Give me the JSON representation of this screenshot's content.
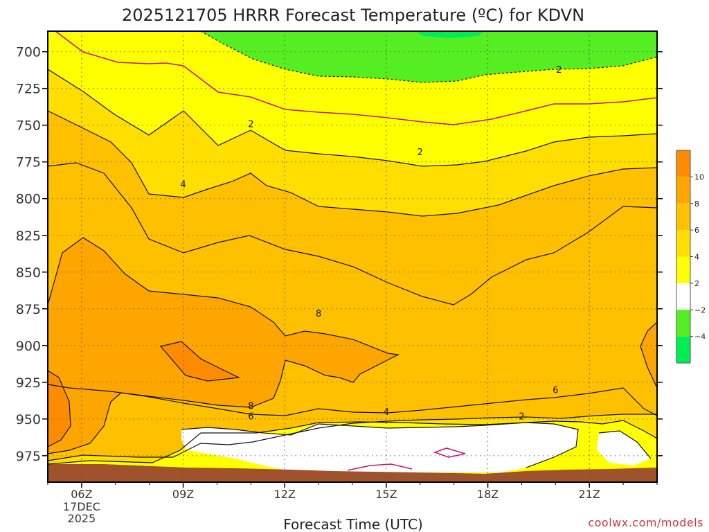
{
  "chart_data": {
    "type": "heatmap",
    "title": "2025121705 HRRR Forecast Temperature (ºC) for KDVN",
    "xlabel": "Forecast Time (UTC)",
    "credit": "coolwx.com/models",
    "y_ticks": [
      "700",
      "725",
      "750",
      "775",
      "800",
      "825",
      "850",
      "875",
      "900",
      "925",
      "950",
      "975"
    ],
    "y_values": [
      700,
      725,
      750,
      775,
      800,
      825,
      850,
      875,
      900,
      925,
      950,
      975
    ],
    "x_ticks": [
      {
        "hour": 6,
        "label": "06Z",
        "sub": [
          "17DEC",
          "2025"
        ]
      },
      {
        "hour": 9,
        "label": "09Z",
        "sub": []
      },
      {
        "hour": 12,
        "label": "12Z",
        "sub": []
      },
      {
        "hour": 15,
        "label": "15Z",
        "sub": []
      },
      {
        "hour": 18,
        "label": "18Z",
        "sub": []
      },
      {
        "hour": 21,
        "label": "21Z",
        "sub": []
      }
    ],
    "xlim_hours": [
      5,
      23
    ],
    "ylim_hpa": [
      686,
      993
    ],
    "colorbar": {
      "ticks": [
        "10",
        "8",
        "6",
        "4",
        "2",
        "−2",
        "−4"
      ],
      "colors": [
        "#ff8c00",
        "#ffa500",
        "#ffc000",
        "#ffde00",
        "#ffff00",
        "#ffffff",
        "#55ee22",
        "#00ee55"
      ]
    },
    "contour_labels": [
      {
        "text": "2",
        "hour": 20.1,
        "p": 712
      },
      {
        "text": "2",
        "hour": 11.0,
        "p": 749
      },
      {
        "text": "2",
        "hour": 16.0,
        "p": 768
      },
      {
        "text": "4",
        "hour": 9.0,
        "p": 790
      },
      {
        "text": "8",
        "hour": 13.0,
        "p": 878
      },
      {
        "text": "8",
        "hour": 11.0,
        "p": 941
      },
      {
        "text": "6",
        "hour": 11.0,
        "p": 948
      },
      {
        "text": "4",
        "hour": 15.0,
        "p": 945
      },
      {
        "text": "6",
        "hour": 20.0,
        "p": 930
      },
      {
        "text": "2",
        "hour": 19.0,
        "p": 948
      }
    ],
    "grid": true
  }
}
